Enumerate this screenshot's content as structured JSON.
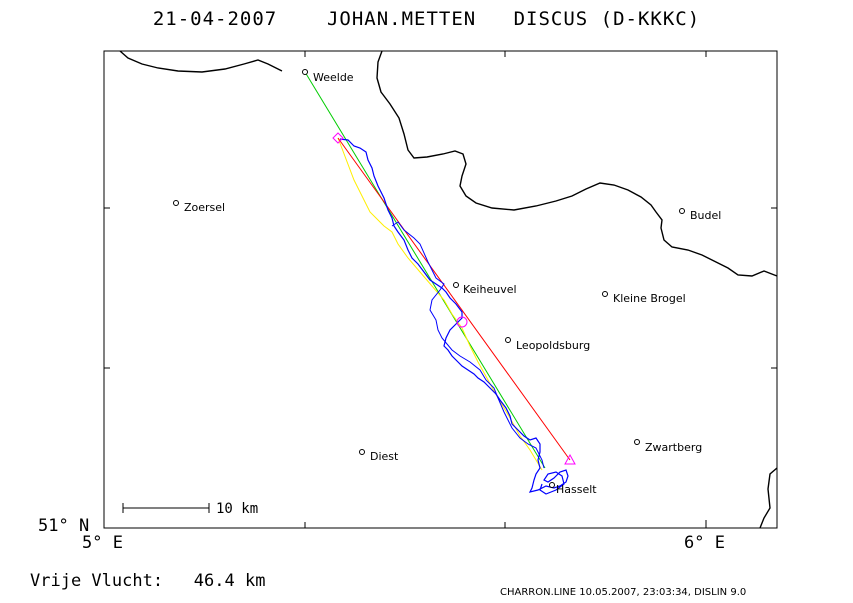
{
  "header": {
    "date": "21-04-2007",
    "pilot": "JOHAN.METTEN",
    "glider": "DISCUS (D-KKKC)"
  },
  "axes": {
    "lat_label": "51° N",
    "lon_labels": [
      "5° E",
      "6° E"
    ]
  },
  "towns": [
    {
      "name": "Weelde"
    },
    {
      "name": "Zoersel"
    },
    {
      "name": "Budel"
    },
    {
      "name": "Keiheuvel"
    },
    {
      "name": "Kleine Brogel"
    },
    {
      "name": "Leopoldsburg"
    },
    {
      "name": "Zwartberg"
    },
    {
      "name": "Diest"
    },
    {
      "name": "Hasselt"
    }
  ],
  "scale_bar": {
    "label": "10 km"
  },
  "footer": {
    "result_label": "Vrije Vlucht:",
    "result_value": "46.4 km",
    "credit": "CHARRON.LINE 10.05.2007, 23:03:34, DISLIN 9.0"
  },
  "colors": {
    "track": "#0000ff",
    "task_line_green": "#00cc00",
    "task_line_yellow": "#ffee00",
    "task_line_red": "#ff0000",
    "turnpoint_marker": "#ff00ff",
    "border": "#000000"
  }
}
